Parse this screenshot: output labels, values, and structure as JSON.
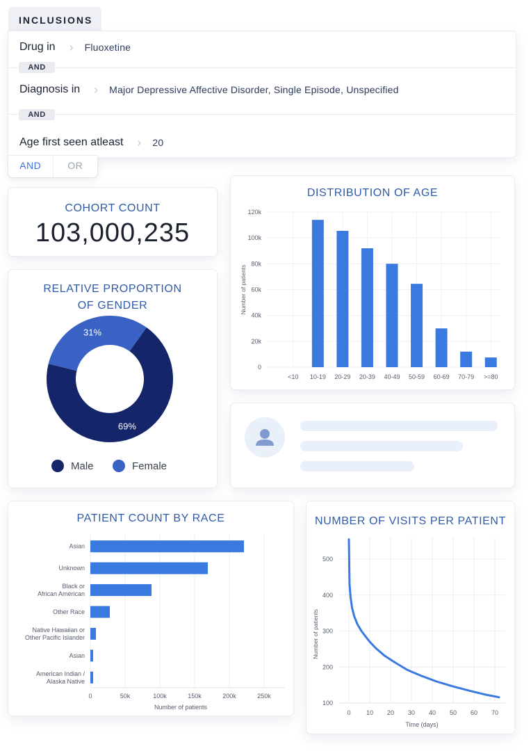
{
  "inclusions": {
    "header": "INCLUSIONS",
    "criteria": [
      {
        "label": "Drug in",
        "value": "Fluoxetine"
      },
      {
        "label": "Diagnosis in",
        "value": "Major Depressive Affective Disorder, Single Episode, Unspecified"
      },
      {
        "label": "Age first seen atleast",
        "value": "20"
      }
    ],
    "operators": [
      "AND",
      "AND"
    ],
    "add_and": "AND",
    "add_or": "OR"
  },
  "cohort": {
    "title": "COHORT COUNT",
    "value": "103,000,235"
  },
  "gender": {
    "title_line1": "RELATIVE PROPORTION",
    "title_line2": "OF GENDER",
    "male_label": "Male",
    "female_label": "Female"
  },
  "age_chart": {
    "title": "DISTRIBUTION OF AGE"
  },
  "race_chart": {
    "title": "PATIENT COUNT BY RACE"
  },
  "visits_chart": {
    "title": "NUMBER OF VISITS PER PATIENT"
  },
  "colors": {
    "primary_blue": "#3a7ae0",
    "navy": "#14256a",
    "female_blue": "#3a62c4",
    "title_blue": "#2f5aa8"
  },
  "icons": {
    "avatar": "user-icon",
    "separator": "chevron-right-icon"
  },
  "chart_data": [
    {
      "type": "pie",
      "categories": [
        "Male",
        "Female"
      ],
      "values": [
        69,
        31
      ],
      "data_labels": [
        "69%",
        "31%"
      ],
      "donut": true,
      "legend": "bottom"
    },
    {
      "type": "bar",
      "title": "DISTRIBUTION OF AGE",
      "categories": [
        "<10",
        "10-19",
        "20-29",
        "20-39",
        "40-49",
        "50-59",
        "60-69",
        "70-79",
        ">=80"
      ],
      "values": [
        0,
        114000,
        105500,
        92000,
        80000,
        64500,
        30000,
        12000,
        7500
      ],
      "ylabel": "Number of patients",
      "ylim": [
        0,
        120000
      ],
      "yticks": [
        0,
        20000,
        40000,
        60000,
        80000,
        100000,
        120000
      ],
      "ytick_labels": [
        "0",
        "20k",
        "40k",
        "60k",
        "80k",
        "100k",
        "120k"
      ],
      "grid": true
    },
    {
      "type": "bar",
      "orientation": "horizontal",
      "title": "PATIENT COUNT BY RACE",
      "categories": [
        [
          "Asian"
        ],
        [
          "Unknown"
        ],
        [
          "Black or",
          "African American"
        ],
        [
          "Other Race"
        ],
        [
          "Native Hawaiian or",
          "Other Pacific Islander"
        ],
        [
          "Asian"
        ],
        [
          "American Indian /",
          "Alaska Native"
        ]
      ],
      "values": [
        221000,
        169000,
        88000,
        28000,
        8000,
        4000,
        4000
      ],
      "xlabel": "Number of patients",
      "xlim": [
        0,
        280000
      ],
      "xticks": [
        0,
        50000,
        100000,
        150000,
        200000,
        250000
      ],
      "xtick_labels": [
        "0",
        "50k",
        "100k",
        "150k",
        "200k",
        "250k"
      ],
      "grid": true
    },
    {
      "type": "line",
      "title": "NUMBER OF VISITS PER PATIENT",
      "x": [
        0,
        0.3,
        0.8,
        1.5,
        2.5,
        4,
        6,
        8,
        10,
        13,
        17,
        22,
        28,
        35,
        42,
        50,
        58,
        65,
        72
      ],
      "y": [
        555,
        430,
        395,
        365,
        342,
        320,
        300,
        285,
        270,
        252,
        232,
        213,
        192,
        175,
        160,
        146,
        134,
        124,
        116
      ],
      "xlabel": "Time (days)",
      "ylabel": "Number of patients",
      "xlim": [
        -5,
        75
      ],
      "ylim": [
        100,
        560
      ],
      "xticks": [
        0,
        10,
        20,
        30,
        40,
        50,
        60,
        70
      ],
      "yticks": [
        100,
        200,
        300,
        400,
        500
      ],
      "grid": true
    }
  ]
}
